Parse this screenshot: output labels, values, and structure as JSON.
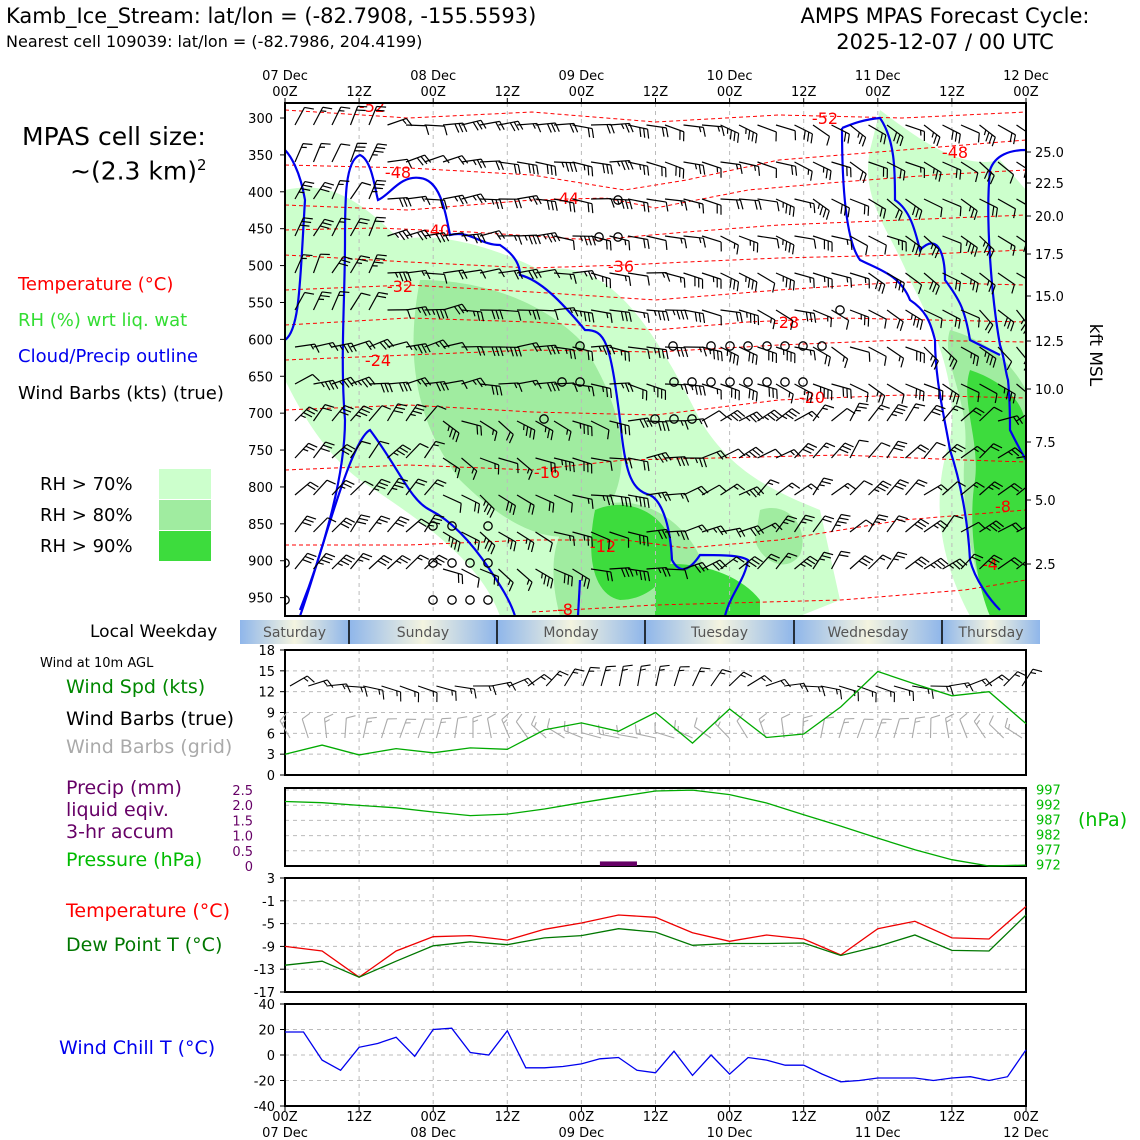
{
  "header": {
    "title_left": "Kamb_Ice_Stream: lat/lon = (-82.7908, -155.5593)",
    "subtitle_left": "Nearest cell 109039: lat/lon = (-82.7986, 204.4199)",
    "title_right_1": "AMPS MPAS Forecast Cycle:",
    "title_right_2": "2025-12-07 / 00 UTC"
  },
  "legend": {
    "cell_size_1": "MPAS cell size:",
    "cell_size_2": "~(2.3 km)",
    "cell_size_sup": "2",
    "temperature": "Temperature (°C)",
    "rh": "RH (%) wrt liq. wat",
    "cloud": "Cloud/Precip outline",
    "wind": "Wind Barbs (kts) (true)",
    "rh70": "RH > 70%",
    "rh80": "RH > 80%",
    "rh90": "RH > 90%"
  },
  "colors": {
    "rh70": "#ccffcc",
    "rh80": "#a0eca0",
    "rh90": "#3ddc3d",
    "temperature": "#ff0000",
    "rh_text": "#33dd33",
    "cloud": "#0000ee",
    "pressure": "#00aa00",
    "dewpoint": "#007700",
    "precip": "#660066",
    "windchill": "#0000ee",
    "grid_barbs": "#aaaaaa"
  },
  "time_axis": {
    "top_days": [
      "07 Dec",
      "08 Dec",
      "09 Dec",
      "10 Dec",
      "11 Dec",
      "12 Dec"
    ],
    "hours": [
      "00Z",
      "12Z",
      "00Z",
      "12Z",
      "00Z",
      "12Z",
      "00Z",
      "12Z",
      "00Z",
      "12Z",
      "00Z"
    ],
    "bottom_days": [
      "07 Dec",
      "08 Dec",
      "09 Dec",
      "10 Dec",
      "11 Dec",
      "12 Dec"
    ]
  },
  "weekday": {
    "label": "Local Weekday",
    "days": [
      "Saturday",
      "Sunday",
      "Monday",
      "Tuesday",
      "Wednesday",
      "Thursday"
    ]
  },
  "panels": {
    "wind_title": "Wind at 10m AGL",
    "wind_spd": "Wind Spd (kts)",
    "wind_barbs_true": "Wind Barbs (true)",
    "wind_barbs_grid": "Wind Barbs (grid)",
    "precip_1": "Precip (mm)",
    "precip_2": "liquid eqiv.",
    "precip_3": "3-hr accum",
    "pressure": "Pressure (hPa)",
    "pressure_unit": "(hPa)",
    "temperature": "Temperature (°C)",
    "dewpoint": "Dew Point T (°C)",
    "windchill": "Wind Chill T (°C)",
    "kft_label": "kft MSL"
  },
  "chart_data": [
    {
      "type": "heatmap",
      "name": "time-height cross section",
      "y_axis": "pressure (hPa)",
      "ylim": [
        975,
        285
      ],
      "y_ticks": [
        "300",
        "350",
        "400",
        "450",
        "500",
        "550",
        "600",
        "650",
        "700",
        "750",
        "800",
        "850",
        "900",
        "950"
      ],
      "y_right_ticks": [
        "25.0",
        "22.5",
        "20.0",
        "17.5",
        "15.0",
        "12.5",
        "10.0",
        "7.5",
        "5.0",
        "2.5"
      ],
      "y_right_label": "kft MSL",
      "x_hours_range": [
        0,
        120
      ],
      "isotherm_labels": [
        "-52",
        "-52",
        "-48",
        "-48",
        "-44",
        "-40",
        "-36",
        "-32",
        "-28",
        "-24",
        "-20",
        "-16",
        "-12",
        "-8",
        "-8",
        "-4"
      ],
      "legend": [
        "Temperature (°C)",
        "RH (%) wrt liq. wat",
        "Cloud/Precip outline",
        "Wind Barbs (kts) (true)"
      ]
    },
    {
      "type": "line",
      "name": "Wind Spd (kts)",
      "ylim": [
        0,
        18
      ],
      "y_ticks": [
        "0",
        "3",
        "6",
        "9",
        "12",
        "15",
        "18"
      ],
      "x_hours": [
        0,
        6,
        12,
        18,
        24,
        30,
        36,
        42,
        48,
        54,
        60,
        66,
        72,
        78,
        84,
        90,
        96,
        102,
        108,
        114,
        120
      ],
      "values": [
        3.0,
        4.3,
        2.9,
        3.8,
        3.2,
        3.9,
        3.7,
        6.5,
        7.5,
        6.3,
        9.0,
        4.6,
        9.5,
        5.4,
        5.9,
        9.8,
        14.9,
        13.1,
        11.4,
        12.0,
        7.4
      ]
    },
    {
      "type": "line",
      "name": "Pressure (hPa)",
      "y_right_ticks": [
        "997",
        "992",
        "987",
        "982",
        "977",
        "972"
      ],
      "y_left_ticks": [
        "2.5",
        "2.0",
        "1.5",
        "1.0",
        "0.5",
        "0"
      ],
      "precip_mm": [
        {
          "hour_start": 51,
          "hour_end": 57,
          "value": 0.15
        }
      ],
      "x_hours": [
        0,
        6,
        12,
        18,
        24,
        30,
        36,
        42,
        48,
        54,
        60,
        66,
        72,
        78,
        84,
        90,
        96,
        102,
        108,
        114,
        120
      ],
      "values": [
        993.0,
        992.6,
        991.7,
        990.9,
        989.5,
        988.3,
        988.8,
        990.5,
        992.6,
        994.6,
        996.5,
        996.8,
        995.3,
        992.5,
        988.6,
        984.8,
        980.8,
        976.9,
        973.6,
        971.5,
        971.8
      ]
    },
    {
      "type": "line",
      "name": "Temperature / Dew Point (°C)",
      "ylim": [
        -17,
        3
      ],
      "y_ticks": [
        "3",
        "-1",
        "-5",
        "-9",
        "-13",
        "-17"
      ],
      "x_hours": [
        0,
        6,
        12,
        18,
        24,
        30,
        36,
        42,
        48,
        54,
        60,
        66,
        72,
        78,
        84,
        90,
        96,
        102,
        108,
        114,
        120
      ],
      "series": [
        {
          "name": "Temperature (°C)",
          "values": [
            -9.0,
            -9.8,
            -14.4,
            -9.8,
            -7.3,
            -7.1,
            -7.9,
            -6.0,
            -4.9,
            -3.5,
            -3.9,
            -6.6,
            -8.1,
            -7.0,
            -7.7,
            -10.5,
            -5.9,
            -4.6,
            -7.5,
            -7.7,
            -2.0
          ]
        },
        {
          "name": "Dew Point T (°C)",
          "values": [
            -12.3,
            -11.6,
            -14.4,
            -11.6,
            -8.9,
            -8.2,
            -8.7,
            -7.5,
            -7.1,
            -5.9,
            -6.5,
            -8.8,
            -8.5,
            -8.5,
            -8.4,
            -10.6,
            -9.0,
            -7.0,
            -9.7,
            -9.8,
            -3.5
          ]
        }
      ]
    },
    {
      "type": "line",
      "name": "Wind Chill T (°C)",
      "ylim": [
        -40,
        40
      ],
      "y_ticks": [
        "40",
        "20",
        "0",
        "-20",
        "-40"
      ],
      "x_hours": [
        0,
        3,
        6,
        9,
        12,
        15,
        18,
        21,
        24,
        27,
        30,
        33,
        36,
        39,
        42,
        45,
        48,
        51,
        54,
        57,
        60,
        63,
        66,
        69,
        72,
        75,
        78,
        81,
        84,
        87,
        90,
        93,
        96,
        99,
        102,
        105,
        108,
        111,
        114,
        117,
        120
      ],
      "values": [
        18,
        18,
        -4,
        -12,
        6,
        9,
        14,
        -1,
        20,
        21,
        2,
        0,
        19,
        -10,
        -10,
        -9,
        -7,
        -3,
        -2,
        -12,
        -14,
        3,
        -16,
        0,
        -15,
        -2,
        -4,
        -8,
        -8,
        -15,
        -21,
        -20,
        -18,
        -18,
        -18,
        -20,
        -18,
        -17,
        -20,
        -17,
        4
      ]
    }
  ]
}
